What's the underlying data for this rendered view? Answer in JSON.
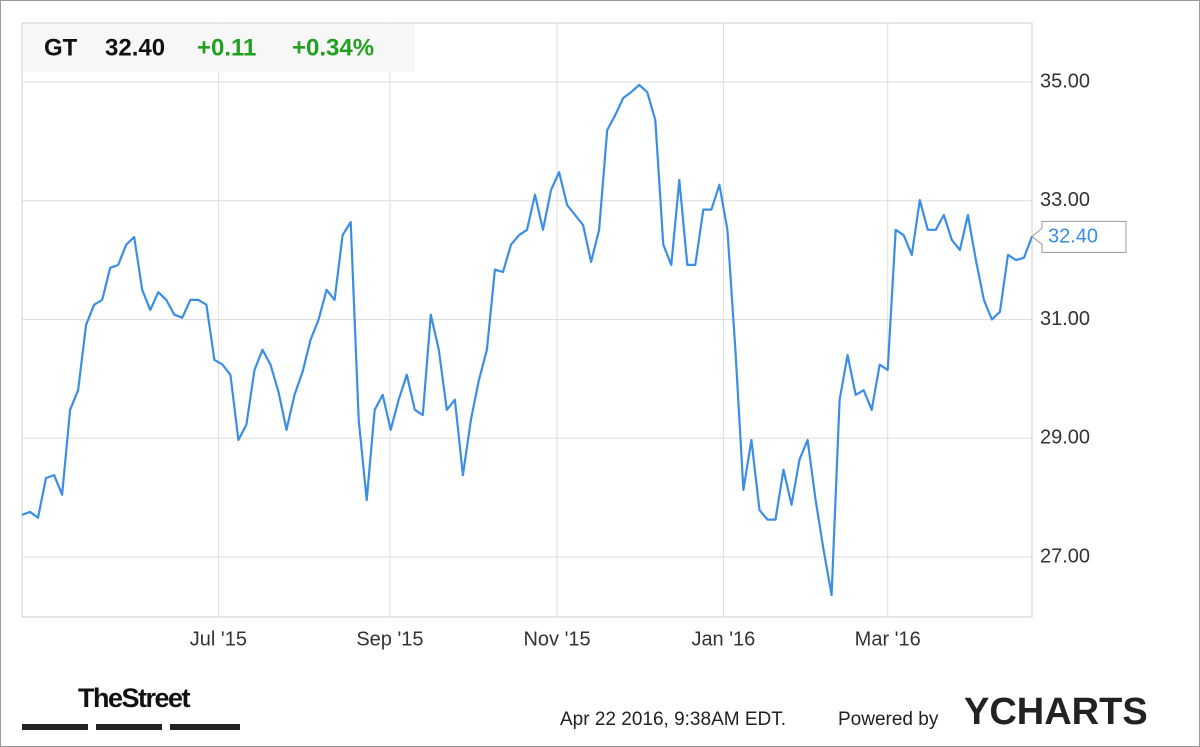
{
  "header": {
    "symbol": "GT",
    "price": "32.40",
    "change": "+0.11",
    "change_pct": "+0.34%"
  },
  "chart_data": {
    "type": "line",
    "color": "#3a8ee6",
    "grid": true,
    "last_value_label": "32.40",
    "values": [
      27.71,
      27.76,
      27.66,
      28.33,
      28.38,
      28.05,
      29.48,
      29.81,
      30.91,
      31.25,
      31.33,
      31.87,
      31.92,
      32.26,
      32.39,
      31.5,
      31.16,
      31.46,
      31.33,
      31.08,
      31.03,
      31.33,
      31.33,
      31.25,
      30.32,
      30.24,
      30.07,
      28.97,
      29.23,
      30.15,
      30.49,
      30.24,
      29.78,
      29.14,
      29.73,
      30.12,
      30.66,
      31.0,
      31.5,
      31.33,
      32.42,
      32.64,
      29.31,
      27.96,
      29.48,
      29.73,
      29.14,
      29.65,
      30.07,
      29.48,
      29.39,
      31.08,
      30.49,
      29.48,
      29.65,
      28.38,
      29.31,
      29.98,
      30.49,
      31.84,
      31.8,
      32.26,
      32.42,
      32.51,
      33.1,
      32.51,
      33.18,
      33.48,
      32.93,
      32.76,
      32.59,
      31.97,
      32.51,
      34.19,
      34.44,
      34.73,
      34.83,
      34.95,
      34.83,
      34.36,
      32.26,
      31.92,
      33.35,
      31.92,
      31.92,
      32.85,
      32.85,
      33.27,
      32.51,
      30.49,
      28.13,
      28.97,
      27.79,
      27.63,
      27.63,
      28.47,
      27.88,
      28.64,
      28.97,
      27.96,
      27.12,
      26.36,
      29.65,
      30.4,
      29.73,
      29.81,
      29.48,
      30.24,
      30.15,
      32.51,
      32.42,
      32.09,
      33.01,
      32.51,
      32.51,
      32.76,
      32.34,
      32.17,
      32.76,
      32.0,
      31.33,
      31.0,
      31.13,
      32.09,
      32.0,
      32.04,
      32.4
    ],
    "xlim": [
      0,
      126
    ],
    "xticks": [
      {
        "value": 24.5,
        "label": "Jul '15"
      },
      {
        "value": 45.9,
        "label": "Sep '15"
      },
      {
        "value": 66.75,
        "label": "Nov '15"
      },
      {
        "value": 87.5,
        "label": "Jan '16"
      },
      {
        "value": 108,
        "label": "Mar '16"
      }
    ],
    "ylim": [
      26,
      36
    ],
    "yticks": [
      {
        "value": 27,
        "label": "27.00"
      },
      {
        "value": 29,
        "label": "29.00"
      },
      {
        "value": 31,
        "label": "31.00"
      },
      {
        "value": 33,
        "label": "33.00"
      },
      {
        "value": 35,
        "label": "35.00"
      }
    ]
  },
  "footer": {
    "source": "TheStreet",
    "timestamp": "Apr 22 2016, 9:38AM EDT.",
    "powered_by": "Powered by",
    "brand": "YCHARTS"
  }
}
